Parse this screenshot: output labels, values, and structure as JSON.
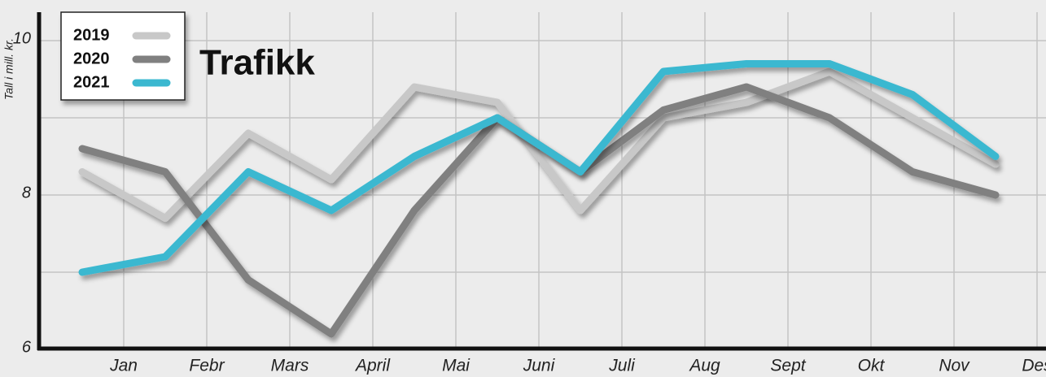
{
  "chart_data": {
    "type": "line",
    "title": "Trafikk",
    "y_label": "Tall i mill. kr.",
    "categories": [
      "Jan",
      "Febr",
      "Mars",
      "April",
      "Mai",
      "Juni",
      "Juli",
      "Aug",
      "Sept",
      "Okt",
      "Nov",
      "Des"
    ],
    "series": [
      {
        "name": "2019",
        "color": "#c8c8c8",
        "values": [
          8.3,
          7.7,
          8.8,
          8.2,
          9.4,
          9.2,
          7.8,
          9.0,
          9.2,
          9.6,
          9.0,
          8.4
        ]
      },
      {
        "name": "2020",
        "color": "#808080",
        "values": [
          8.6,
          8.3,
          6.9,
          6.2,
          7.8,
          9.0,
          8.3,
          9.1,
          9.4,
          9.0,
          8.3,
          8.0
        ]
      },
      {
        "name": "2021",
        "color": "#3bb8d0",
        "values": [
          7.0,
          7.2,
          8.3,
          7.8,
          8.5,
          9.0,
          8.3,
          9.6,
          9.7,
          9.7,
          9.3,
          8.5
        ]
      }
    ],
    "ylim": [
      6,
      10
    ],
    "yticks": [
      6,
      8,
      10
    ],
    "grid": true,
    "legend": "upper left"
  }
}
